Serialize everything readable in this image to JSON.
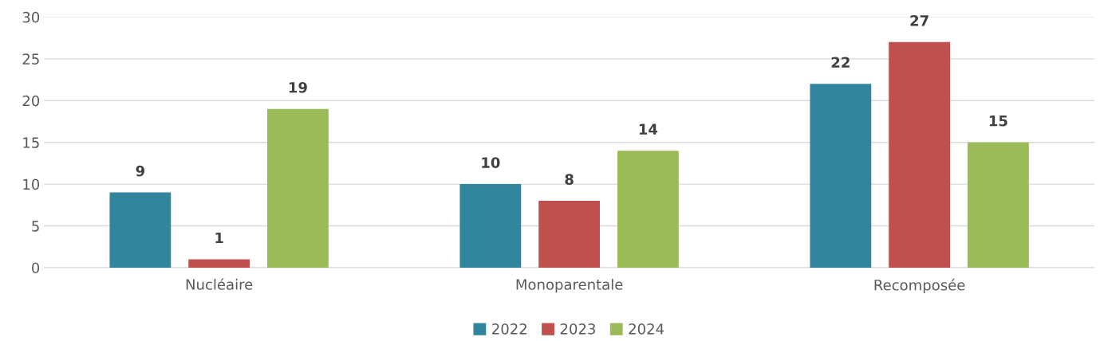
{
  "chart_data": {
    "type": "bar",
    "categories": [
      "Nucléaire",
      "Monoparentale",
      "Recomposée"
    ],
    "series": [
      {
        "name": "2022",
        "color": "#31859c",
        "values": [
          9,
          10,
          22
        ]
      },
      {
        "name": "2023",
        "color": "#c0504d",
        "values": [
          1,
          8,
          27
        ]
      },
      {
        "name": "2024",
        "color": "#9bbb59",
        "values": [
          19,
          14,
          15
        ]
      }
    ],
    "ylim": [
      0,
      30
    ],
    "yticks": [
      0,
      5,
      10,
      15,
      20,
      25,
      30
    ],
    "grid": "y",
    "legend": "bottom",
    "data_labels": true
  }
}
